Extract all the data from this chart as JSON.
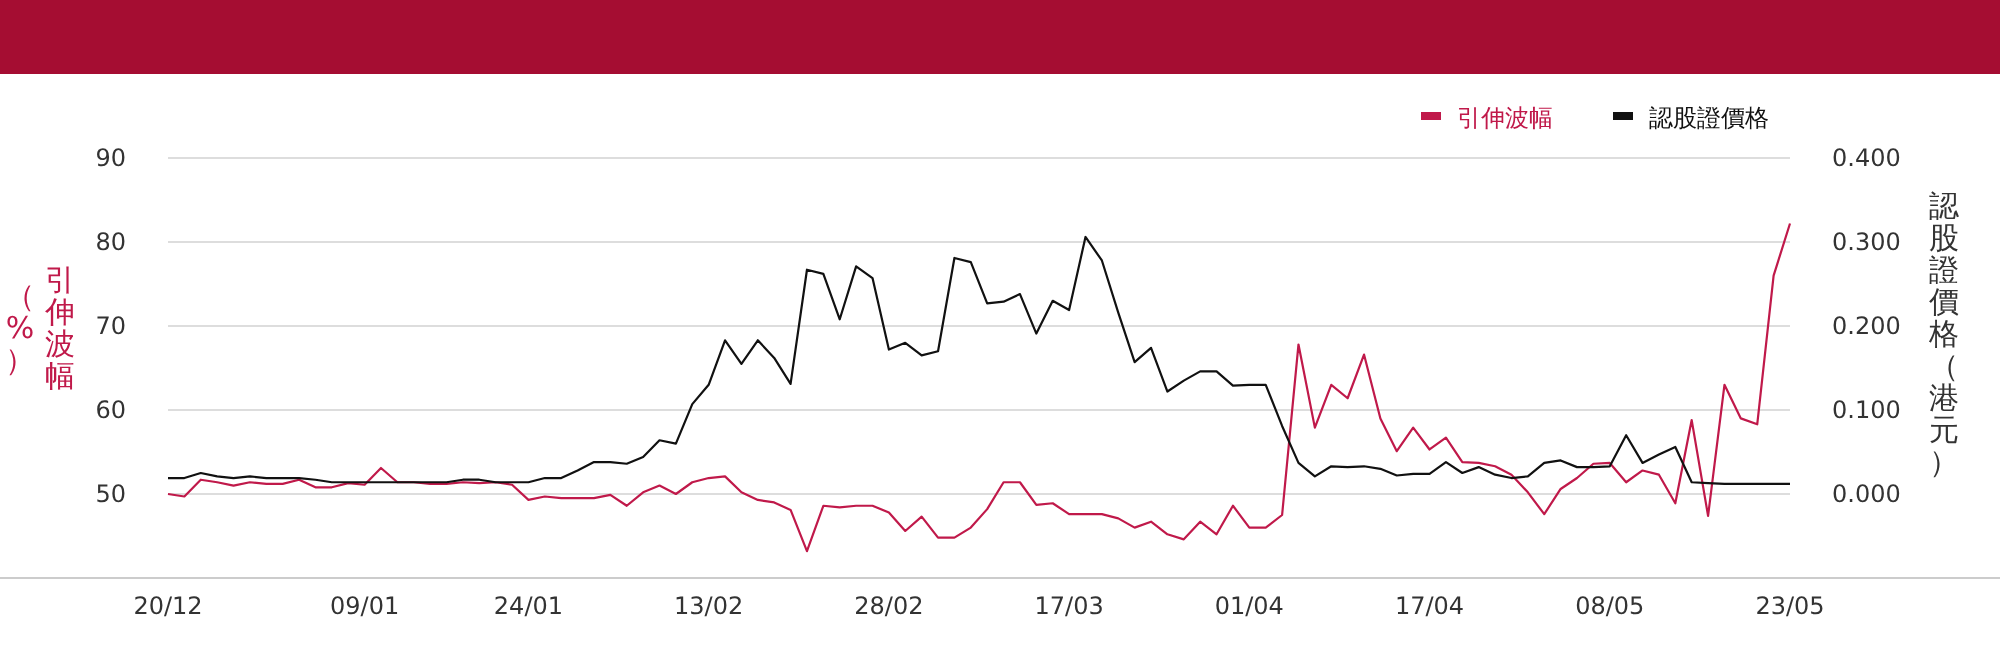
{
  "chart_data": {
    "type": "line",
    "categories": [
      "20/12",
      null,
      null,
      null,
      null,
      null,
      null,
      null,
      null,
      null,
      null,
      null,
      "09/01",
      null,
      null,
      null,
      null,
      null,
      null,
      null,
      null,
      null,
      "24/01",
      null,
      null,
      null,
      null,
      null,
      null,
      null,
      null,
      null,
      null,
      "13/02",
      null,
      null,
      null,
      null,
      null,
      null,
      null,
      null,
      null,
      null,
      "28/02",
      null,
      null,
      null,
      null,
      null,
      null,
      null,
      null,
      null,
      null,
      "17/03",
      null,
      null,
      null,
      null,
      null,
      null,
      null,
      null,
      null,
      null,
      "01/04",
      null,
      null,
      null,
      null,
      null,
      null,
      null,
      null,
      null,
      null,
      "17/04",
      null,
      null,
      null,
      null,
      null,
      null,
      null,
      null,
      null,
      null,
      "08/05",
      null,
      null,
      null,
      null,
      null,
      null,
      null,
      null,
      null,
      null,
      "23/05"
    ],
    "series": [
      {
        "name": "引伸波幅",
        "color": "#c0194a",
        "values": [
          50.0,
          49.7,
          51.7,
          51.4,
          51.0,
          51.4,
          51.2,
          51.2,
          51.7,
          50.8,
          50.8,
          51.3,
          51.1,
          53.1,
          51.4,
          51.4,
          51.2,
          51.2,
          51.4,
          51.3,
          51.4,
          51.1,
          49.3,
          49.7,
          49.5,
          49.5,
          49.5,
          49.9,
          48.6,
          50.2,
          51.0,
          50.0,
          51.4,
          51.9,
          52.1,
          50.2,
          49.3,
          49.0,
          48.1,
          43.2,
          48.6,
          48.4,
          48.6,
          48.6,
          47.8,
          45.6,
          47.3,
          44.8,
          44.8,
          46.0,
          48.2,
          51.4,
          51.4,
          48.7,
          48.9,
          47.6,
          47.6,
          47.6,
          47.1,
          46.0,
          46.7,
          45.2,
          44.6,
          46.7,
          45.2,
          48.6,
          46.0,
          46.0,
          47.5,
          67.8,
          57.9,
          63.0,
          61.4,
          66.6,
          59.0,
          55.1,
          57.9,
          55.3,
          56.7,
          53.8,
          53.7,
          53.3,
          52.3,
          50.2,
          47.6,
          50.6,
          51.9,
          53.6,
          53.7,
          51.4,
          52.8,
          52.3,
          48.9,
          58.8,
          47.4,
          63.0,
          59.0,
          58.3,
          76.0,
          82.2
        ]
      },
      {
        "name": "認股證價格",
        "color": "#111111",
        "axis": "y2",
        "values": [
          0.019,
          0.019,
          0.025,
          0.021,
          0.019,
          0.021,
          0.019,
          0.019,
          0.019,
          0.017,
          0.014,
          0.014,
          0.014,
          0.014,
          0.014,
          0.014,
          0.014,
          0.014,
          0.017,
          0.017,
          0.014,
          0.014,
          0.014,
          0.019,
          0.019,
          0.028,
          0.038,
          0.038,
          0.036,
          0.044,
          0.064,
          0.06,
          0.107,
          0.13,
          0.183,
          0.155,
          0.183,
          0.162,
          0.131,
          0.267,
          0.262,
          0.208,
          0.271,
          0.257,
          0.172,
          0.18,
          0.165,
          0.17,
          0.281,
          0.276,
          0.227,
          0.229,
          0.238,
          0.191,
          0.23,
          0.219,
          0.306,
          0.278,
          0.216,
          0.157,
          0.174,
          0.122,
          0.135,
          0.146,
          0.146,
          0.129,
          0.13,
          0.13,
          0.081,
          0.037,
          0.021,
          0.033,
          0.032,
          0.033,
          0.03,
          0.022,
          0.024,
          0.024,
          0.038,
          0.025,
          0.032,
          0.023,
          0.019,
          0.021,
          0.037,
          0.04,
          0.032,
          0.032,
          0.033,
          0.07,
          0.037,
          0.047,
          0.056,
          0.014,
          0.013,
          0.012,
          0.012,
          0.012,
          0.012,
          0.012
        ]
      }
    ],
    "ylabel": "引伸波幅（%）",
    "y2label": "認股證價格（港元）",
    "ylim": [
      40,
      90
    ],
    "yticks": [
      50,
      60,
      70,
      80,
      90
    ],
    "y2lim": [
      -0.1,
      0.4
    ],
    "y2ticks": [
      {
        "value": 0,
        "label": "0.000"
      },
      {
        "value": 0.1,
        "label": "0.100"
      },
      {
        "value": 0.2,
        "label": "0.200"
      },
      {
        "value": 0.3,
        "label": "0.300"
      },
      {
        "value": 0.4,
        "label": "0.400"
      }
    ],
    "grid": "y",
    "legend": "top right",
    "line_style": "solid",
    "marker": "none"
  }
}
